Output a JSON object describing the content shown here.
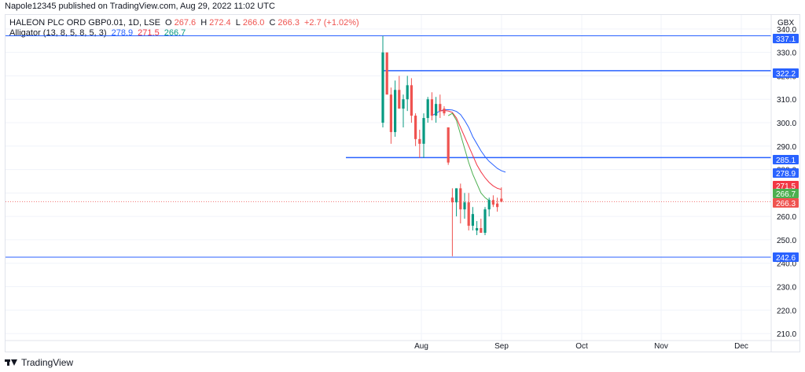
{
  "header": {
    "publisher": "Napole12345 published on TradingView.com, Aug 29, 2022 11:02 UTC"
  },
  "legend": {
    "symbol": "HALEON PLC ORD GBP0.01, 1D, LSE",
    "o_label": "O",
    "o_value": "267.6",
    "h_label": "H",
    "h_value": "272.4",
    "l_label": "L",
    "l_value": "266.0",
    "c_label": "C",
    "c_value": "266.3",
    "change": "+2.7 (+1.02%)",
    "indicator": "Alligator (13, 8, 5, 8, 5, 3)",
    "jaw": "278.9",
    "teeth": "271.5",
    "lips": "266.7"
  },
  "footer": {
    "brand": "TradingView"
  },
  "colors": {
    "up": "#089981",
    "down": "#ef5350",
    "hline": "#2962ff",
    "jaw": "#2962ff",
    "teeth": "#f23645",
    "lips": "#4caf50"
  },
  "chart_data": {
    "type": "candlestick",
    "currency": "GBX",
    "ylim": [
      207,
      346
    ],
    "y_ticks": [
      210,
      220,
      230,
      240,
      250,
      260,
      270,
      280,
      290,
      300,
      310,
      320,
      330,
      340
    ],
    "x_ticks": [
      "Aug",
      "Sep",
      "Oct",
      "Nov",
      "Dec"
    ],
    "candles": [
      {
        "o": 300,
        "h": 337,
        "l": 298,
        "c": 330
      },
      {
        "o": 330,
        "h": 330,
        "l": 313,
        "c": 312
      },
      {
        "o": 312,
        "h": 315,
        "l": 291,
        "c": 296
      },
      {
        "o": 296,
        "h": 318,
        "l": 294,
        "c": 314
      },
      {
        "o": 314,
        "h": 320,
        "l": 306,
        "c": 306
      },
      {
        "o": 306,
        "h": 312,
        "l": 298,
        "c": 310
      },
      {
        "o": 310,
        "h": 320,
        "l": 305,
        "c": 316
      },
      {
        "o": 316,
        "h": 319,
        "l": 300,
        "c": 303
      },
      {
        "o": 303,
        "h": 304,
        "l": 290,
        "c": 293
      },
      {
        "o": 293,
        "h": 297,
        "l": 285,
        "c": 291
      },
      {
        "o": 291,
        "h": 304,
        "l": 285,
        "c": 302
      },
      {
        "o": 302,
        "h": 311,
        "l": 300,
        "c": 310
      },
      {
        "o": 310,
        "h": 313,
        "l": 301,
        "c": 303
      },
      {
        "o": 303,
        "h": 311,
        "l": 300,
        "c": 308
      },
      {
        "o": 308,
        "h": 312,
        "l": 302,
        "c": 305
      },
      {
        "o": 306,
        "h": 307,
        "l": 303,
        "c": 304
      },
      {
        "o": 298,
        "h": 298,
        "l": 282,
        "c": 283
      },
      {
        "o": 268,
        "h": 272,
        "l": 243,
        "c": 266
      },
      {
        "o": 266,
        "h": 272,
        "l": 260,
        "c": 272
      },
      {
        "o": 272,
        "h": 274,
        "l": 257,
        "c": 263
      },
      {
        "o": 263,
        "h": 270,
        "l": 259,
        "c": 266
      },
      {
        "o": 266,
        "h": 270,
        "l": 254,
        "c": 256
      },
      {
        "o": 256,
        "h": 264,
        "l": 254,
        "c": 261
      },
      {
        "o": 254,
        "h": 258,
        "l": 252,
        "c": 255
      },
      {
        "o": 255,
        "h": 259,
        "l": 253,
        "c": 253
      },
      {
        "o": 253,
        "h": 264,
        "l": 252,
        "c": 263
      },
      {
        "o": 263,
        "h": 268,
        "l": 260,
        "c": 267
      },
      {
        "o": 267,
        "h": 269,
        "l": 264,
        "c": 265
      },
      {
        "o": 265.5,
        "h": 268,
        "l": 262,
        "c": 264
      },
      {
        "o": 267.6,
        "h": 272.4,
        "l": 266.0,
        "c": 266.3
      }
    ],
    "alligator": {
      "jaw": {
        "start": 12,
        "values": [
          303,
          304,
          305,
          305.5,
          305.6,
          305.4,
          304.8,
          303.5,
          301,
          298,
          294,
          291,
          288,
          285.5,
          283.5,
          282,
          280.5,
          279.5,
          278.9
        ]
      },
      "teeth": {
        "start": 14,
        "values": [
          305,
          305.2,
          305,
          304.4,
          302,
          298,
          294,
          290,
          286,
          282,
          279,
          276.5,
          274.5,
          273,
          272,
          271.5
        ]
      },
      "lips": {
        "start": 16,
        "values": [
          303,
          304,
          301,
          295,
          289,
          283,
          278,
          274,
          270,
          268,
          266.7
        ]
      }
    },
    "horizontal_lines": [
      337.1,
      322.2,
      285.1,
      242.6
    ],
    "price_labels": [
      {
        "value": "337.1",
        "y": 337.1,
        "color": "#2962ff"
      },
      {
        "value": "322.2",
        "y": 322.2,
        "color": "#2962ff"
      },
      {
        "value": "285.1",
        "y": 285.1,
        "color": "#2962ff"
      },
      {
        "value": "278.9",
        "y": 278.9,
        "color": "#2962ff"
      },
      {
        "value": "271.5",
        "y": 271.5,
        "color": "#f23645"
      },
      {
        "value": "266.7",
        "y": 266.7,
        "color": "#4caf50"
      },
      {
        "value": "266.3",
        "y": 266.3,
        "color": "#ef5350"
      },
      {
        "value": "242.6",
        "y": 242.6,
        "color": "#2962ff"
      }
    ]
  }
}
